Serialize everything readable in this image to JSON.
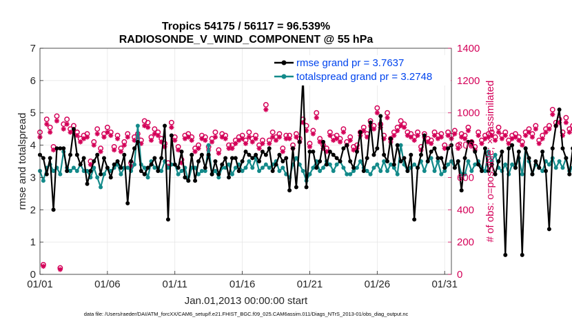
{
  "chart_data": {
    "type": "line",
    "title": "Tropics 54175 / 56117 = 96.539%",
    "subtitle": "RADIOSONDE_V_WIND_COMPONENT @ 55 hPa",
    "xlabel": "Jan.01,2013 00:00:00 start",
    "ylabel": "rmse and totalspread",
    "y2label": "# of obs: o=possible; ×=assimilated",
    "footer": "data file: /Users/raeder/DAI/ATM_forcXX/CAM6_setup/f.e21.FHIST_BGC.f09_025.CAM6assim.011/Diags_NTrS_2013-01/obs_diag_output.nc",
    "xlim": [
      1,
      31.5
    ],
    "ylim": [
      0,
      7
    ],
    "y2lim": [
      0,
      1400
    ],
    "x_ticks": [
      1,
      6,
      11,
      16,
      21,
      26,
      31
    ],
    "x_tick_labels": [
      "01/01",
      "01/06",
      "01/11",
      "01/16",
      "01/21",
      "01/26",
      "01/31"
    ],
    "y_ticks": [
      "0",
      "1",
      "2",
      "3",
      "4",
      "5",
      "6",
      "7"
    ],
    "y2_ticks": [
      "0",
      "200",
      "400",
      "600",
      "800",
      "1000",
      "1200",
      "1400"
    ],
    "colors": {
      "rmse": "#000000",
      "spread": "#138a8a",
      "obs": "#d40058",
      "legend_text": "#0044ee"
    },
    "legend": [
      {
        "name": "rmse grand pr = 3.7637"
      },
      {
        "name": "totalspread grand pr = 3.2748"
      }
    ],
    "series": [
      {
        "name": "rmse",
        "x_start": 1,
        "x_step": 0.25,
        "values": [
          3.7,
          3.6,
          3.1,
          3.6,
          2.0,
          3.9,
          3.9,
          3.9,
          3.2,
          3.7,
          4.5,
          3.7,
          3.4,
          3.6,
          2.8,
          3.2,
          3.5,
          3.7,
          3.1,
          3.6,
          3.3,
          3.0,
          3.4,
          3.5,
          3.3,
          3.7,
          2.2,
          3.5,
          3.9,
          4.1,
          3.2,
          3.1,
          3.3,
          3.4,
          3.6,
          3.2,
          3.6,
          4.6,
          1.7,
          4.3,
          3.4,
          3.3,
          3.8,
          3.0,
          2.9,
          3.7,
          2.9,
          3.5,
          3.7,
          3.3,
          3.7,
          3.1,
          3.5,
          3.1,
          3.4,
          3.6,
          3.0,
          3.6,
          3.6,
          3.2,
          3.5,
          3.8,
          3.7,
          3.6,
          3.7,
          3.5,
          3.8,
          3.7,
          3.9,
          3.2,
          3.4,
          3.7,
          3.5,
          3.6,
          2.6,
          3.9,
          2.7,
          4.1,
          6.1,
          2.7,
          3.8,
          3.8,
          3.3,
          3.5,
          4.1,
          3.4,
          3.8,
          3.7,
          3.6,
          3.5,
          3.9,
          4.0,
          3.5,
          3.3,
          3.8,
          4.4,
          3.2,
          3.6,
          4.7,
          3.7,
          3.9,
          4.9,
          3.7,
          3.5,
          4.2,
          3.4,
          4.0,
          3.5,
          3.6,
          3.2,
          3.7,
          1.7,
          3.3,
          3.7,
          4.3,
          3.5,
          3.8,
          3.9,
          3.6,
          3.6,
          3.3,
          3.9,
          4.0,
          3.3,
          3.5,
          2.6,
          3.6,
          4.1,
          4.1,
          3.8,
          3.4,
          3.2,
          3.9,
          3.2,
          3.4,
          3.1,
          3.5,
          3.8,
          0.6,
          3.9,
          4.0,
          3.3,
          3.8,
          0.6,
          3.9,
          3.6,
          3.1,
          3.5,
          3.3,
          3.8,
          3.2,
          1.4,
          3.9,
          4.6,
          5.1,
          3.9,
          3.6,
          3.1,
          3.9,
          3.5
        ]
      },
      {
        "name": "totalspread",
        "x_start": 1,
        "x_step": 0.25,
        "values": [
          3.2,
          2.9,
          3.3,
          3.4,
          3.2,
          3.3,
          3.1,
          3.8,
          3.3,
          3.2,
          3.3,
          3.2,
          3.4,
          3.2,
          3.2,
          3.0,
          3.3,
          3.0,
          2.7,
          3.1,
          3.3,
          3.2,
          3.3,
          3.4,
          3.1,
          3.3,
          3.3,
          3.2,
          3.4,
          4.6,
          3.4,
          3.3,
          3.0,
          3.5,
          3.3,
          3.3,
          3.2,
          3.5,
          3.3,
          3.4,
          3.4,
          3.1,
          3.2,
          3.3,
          2.9,
          3.3,
          3.3,
          3.1,
          3.2,
          3.2,
          4.0,
          3.1,
          3.2,
          3.0,
          3.3,
          3.3,
          3.4,
          3.1,
          3.3,
          3.4,
          3.2,
          3.3,
          3.5,
          3.3,
          3.6,
          3.2,
          3.3,
          3.4,
          3.3,
          3.4,
          3.5,
          3.2,
          3.3,
          3.1,
          3.0,
          3.4,
          3.6,
          3.4,
          3.2,
          2.9,
          3.1,
          3.3,
          3.5,
          3.2,
          3.3,
          3.5,
          3.4,
          3.2,
          3.4,
          3.5,
          3.3,
          3.1,
          3.1,
          3.2,
          3.3,
          3.5,
          3.3,
          3.2,
          3.1,
          3.3,
          3.4,
          3.2,
          3.5,
          3.2,
          3.4,
          3.3,
          3.1,
          4.0,
          3.4,
          3.2,
          3.3,
          3.4,
          3.3,
          3.5,
          3.2,
          3.5,
          3.6,
          3.2,
          3.5,
          3.1,
          3.2,
          3.4,
          3.5,
          3.3,
          3.5,
          3.1,
          3.1,
          3.5,
          3.2,
          3.4,
          3.5,
          3.3,
          3.2,
          3.8,
          3.5,
          3.7,
          3.3,
          3.2,
          3.4,
          3.1,
          3.4,
          3.3,
          3.6,
          3.1,
          3.9,
          3.5,
          3.1,
          3.4,
          3.3,
          3.2,
          3.5,
          3.4,
          3.6,
          3.3,
          3.5,
          3.3,
          3.6,
          3.2,
          3.3,
          3.5
        ]
      },
      {
        "name": "obs possible",
        "axis": "right",
        "x_start": 1,
        "x_step": 0.25,
        "values": [
          880,
          60,
          960,
          910,
          790,
          980,
          40,
          930,
          960,
          900,
          920,
          880,
          840,
          860,
          870,
          700,
          820,
          900,
          780,
          870,
          910,
          880,
          790,
          860,
          780,
          820,
          870,
          690,
          850,
          870,
          830,
          950,
          940,
          850,
          900,
          880,
          840,
          810,
          690,
          940,
          850,
          790,
          710,
          860,
          870,
          850,
          780,
          800,
          860,
          850,
          790,
          840,
          880,
          770,
          870,
          860,
          800,
          800,
          830,
          850,
          860,
          830,
          880,
          840,
          860,
          800,
          830,
          1050,
          830,
          880,
          850,
          870,
          780,
          860,
          860,
          800,
          870,
          840,
          960,
          920,
          810,
          890,
          1000,
          840,
          800,
          780,
          880,
          850,
          860,
          840,
          900,
          820,
          850,
          790,
          800,
          880,
          910,
          870,
          950,
          920,
          1030,
          930,
          860,
          1000,
          840,
          880,
          910,
          950,
          930,
          880,
          870,
          850,
          880,
          790,
          870,
          840,
          830,
          880,
          860,
          870,
          800,
          880,
          860,
          890,
          800,
          870,
          860,
          910,
          820,
          790,
          880,
          830,
          860,
          870,
          880,
          850,
          910,
          860,
          880,
          830,
          860,
          870,
          850,
          820,
          880,
          900,
          870,
          920,
          830,
          860,
          900,
          920,
          1020,
          940,
          960,
          880,
          970,
          900,
          920,
          940
        ]
      },
      {
        "name": "obs assimilated",
        "axis": "right",
        "x_start": 1,
        "x_step": 0.25,
        "values": [
          850,
          50,
          930,
          880,
          770,
          950,
          30,
          900,
          930,
          880,
          890,
          860,
          820,
          840,
          850,
          680,
          800,
          870,
          760,
          850,
          880,
          860,
          770,
          840,
          760,
          800,
          850,
          670,
          830,
          850,
          810,
          920,
          910,
          830,
          870,
          860,
          820,
          790,
          670,
          910,
          830,
          770,
          690,
          840,
          850,
          830,
          760,
          780,
          840,
          830,
          770,
          820,
          850,
          750,
          850,
          840,
          780,
          780,
          810,
          830,
          840,
          810,
          850,
          820,
          840,
          780,
          810,
          1020,
          810,
          850,
          830,
          850,
          760,
          840,
          840,
          780,
          850,
          820,
          940,
          890,
          790,
          870,
          970,
          820,
          780,
          760,
          860,
          830,
          840,
          820,
          880,
          800,
          830,
          770,
          780,
          860,
          890,
          850,
          920,
          900,
          1000,
          910,
          840,
          970,
          820,
          860,
          890,
          920,
          910,
          860,
          850,
          830,
          860,
          770,
          850,
          820,
          810,
          860,
          840,
          850,
          780,
          860,
          840,
          870,
          780,
          850,
          840,
          890,
          800,
          770,
          860,
          810,
          840,
          850,
          860,
          830,
          880,
          840,
          860,
          810,
          840,
          850,
          830,
          800,
          860,
          880,
          850,
          900,
          810,
          840,
          880,
          900,
          990,
          920,
          940,
          860,
          940,
          880,
          900,
          910
        ]
      }
    ]
  }
}
